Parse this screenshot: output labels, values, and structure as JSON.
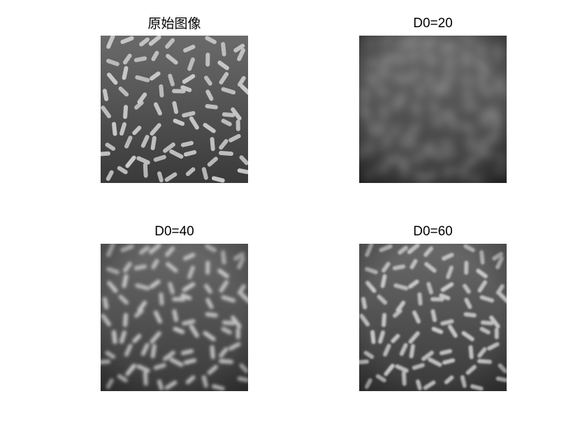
{
  "figure": {
    "panels": [
      {
        "title": "原始图像",
        "kind": "original",
        "blur": 0
      },
      {
        "title": "D0=20",
        "kind": "filtered",
        "blur": 7
      },
      {
        "title": "D0=40",
        "kind": "filtered",
        "blur": 2.2
      },
      {
        "title": "D0=60",
        "kind": "filtered",
        "blur": 1.2
      }
    ],
    "colors": {
      "background_top": "#6a6a6a",
      "background_bottom": "#3a3a3a",
      "grain": "#c9c9c9"
    }
  }
}
